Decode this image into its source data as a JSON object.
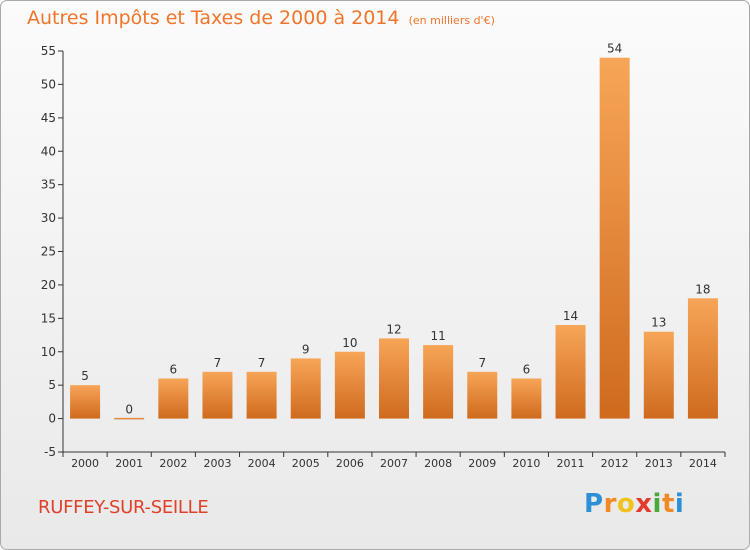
{
  "chart_data": {
    "type": "bar",
    "title": "Autres Impôts et Taxes de 2000 à 2014",
    "subtitle": "(en milliers d'€)",
    "categories": [
      "2000",
      "2001",
      "2002",
      "2003",
      "2004",
      "2005",
      "2006",
      "2007",
      "2008",
      "2009",
      "2010",
      "2011",
      "2012",
      "2013",
      "2014"
    ],
    "values": [
      5,
      0,
      6,
      7,
      7,
      9,
      10,
      12,
      11,
      7,
      6,
      14,
      54,
      13,
      18
    ],
    "ylim": [
      -5,
      55
    ],
    "yticks": [
      -5,
      0,
      5,
      10,
      15,
      20,
      25,
      30,
      35,
      40,
      45,
      50,
      55
    ],
    "grid": false,
    "bar_color": "#f49b4a",
    "bar_color_dark": "#d06a1c"
  },
  "commune": "RUFFEY-SUR-SEILLE",
  "logo": {
    "letters": [
      "P",
      "r",
      "o",
      "x",
      "i",
      "t",
      "i"
    ],
    "colors": [
      "#2d8fd6",
      "#f08a24",
      "#f2c21c",
      "#e23b2e",
      "#4aa83c",
      "#f08a24",
      "#2d8fd6"
    ]
  }
}
